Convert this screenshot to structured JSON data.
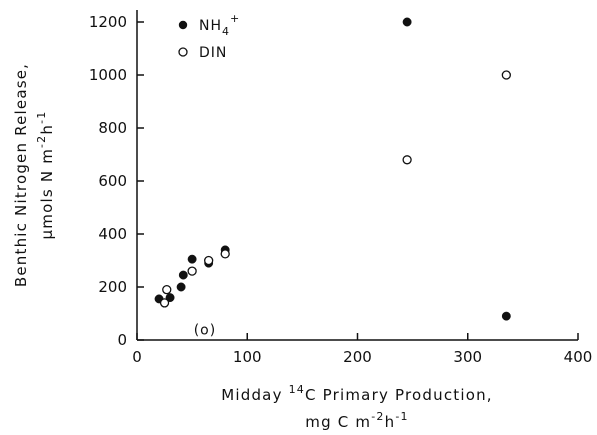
{
  "chart_data": {
    "type": "scatter",
    "xlabel_line1_pre": "Midday ",
    "xlabel_line1_sup": "14",
    "xlabel_line1_post": "C Primary Production,",
    "xlabel_line2": "mg C m",
    "xlabel_line2_sup1": "-2",
    "xlabel_line2_mid": "h",
    "xlabel_line2_sup2": "-1",
    "ylabel_line1": "Benthic Nitrogen Release,",
    "ylabel_line2_pre": "µmols N m",
    "ylabel_line2_sup1": "-2",
    "ylabel_line2_mid": "h",
    "ylabel_line2_sup2": "-1",
    "xlim": [
      0,
      400
    ],
    "ylim": [
      0,
      1200
    ],
    "x_ticks": [
      "0",
      "100",
      "200",
      "300",
      "400"
    ],
    "y_ticks": [
      "0",
      "200",
      "400",
      "600",
      "800",
      "1000",
      "1200"
    ],
    "grid": false,
    "legend_position": "top-left",
    "annotation": "(o)",
    "annotation_point": [
      80,
      40
    ],
    "series": [
      {
        "name": "NH",
        "name_sub": "4",
        "name_sup": "+",
        "marker": "filled-circle",
        "color": "#111111",
        "x": [
          20,
          30,
          40,
          42,
          50,
          65,
          80,
          245,
          335
        ],
        "y": [
          155,
          160,
          200,
          245,
          305,
          290,
          340,
          1200,
          90
        ]
      },
      {
        "name": "DIN",
        "marker": "open-circle",
        "color": "#111111",
        "x": [
          25,
          27,
          50,
          65,
          80,
          245,
          335
        ],
        "y": [
          140,
          190,
          260,
          300,
          325,
          680,
          1000
        ]
      }
    ]
  }
}
